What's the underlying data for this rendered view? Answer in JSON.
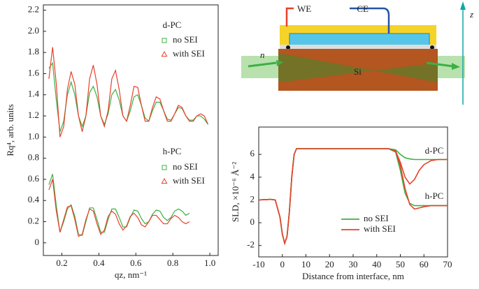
{
  "chart_data": [
    {
      "type": "scatter",
      "xlabel": "qz, nm⁻¹",
      "ylabel": "Rq⁴, arb. units",
      "xlim": [
        0.1,
        1.045
      ],
      "ylim": [
        -0.12,
        2.25
      ],
      "xticks": [
        0.2,
        0.4,
        0.6,
        0.8,
        {
          "value": 1,
          "label": "1.0"
        }
      ],
      "yticks": [
        {
          "value": 0,
          "label": "0"
        },
        0.2,
        0.4,
        0.6,
        0.8,
        {
          "value": 1,
          "label": "1.0"
        },
        1.2,
        1.4,
        1.6,
        1.8,
        {
          "value": 2,
          "label": "2.0"
        },
        2.2
      ],
      "panels": [
        {
          "title": "d-PC",
          "x": [
            0.13,
            0.15,
            0.17,
            0.19,
            0.21,
            0.23,
            0.25,
            0.27,
            0.29,
            0.31,
            0.33,
            0.35,
            0.37,
            0.39,
            0.41,
            0.43,
            0.45,
            0.47,
            0.49,
            0.51,
            0.53,
            0.55,
            0.57,
            0.59,
            0.61,
            0.63,
            0.65,
            0.67,
            0.69,
            0.71,
            0.73,
            0.75,
            0.77,
            0.79,
            0.81,
            0.83,
            0.85,
            0.87,
            0.89,
            0.91,
            0.93,
            0.95,
            0.97,
            0.99
          ],
          "series": [
            {
              "name": "no SEI",
              "color": "#3cb043",
              "marker": "square",
              "values": [
                1.6,
                1.75,
                1.3,
                1.1,
                1.12,
                1.45,
                1.55,
                1.35,
                1.18,
                1.12,
                1.25,
                1.45,
                1.45,
                1.35,
                1.15,
                1.15,
                1.25,
                1.42,
                1.42,
                1.3,
                1.18,
                1.17,
                1.28,
                1.4,
                1.38,
                1.27,
                1.15,
                1.17,
                1.27,
                1.35,
                1.3,
                1.22,
                1.15,
                1.18,
                1.25,
                1.3,
                1.25,
                1.18,
                1.15,
                1.17,
                1.22,
                1.18,
                1.15,
                1.15
              ]
            },
            {
              "name": "with SEI",
              "color": "#e8412c",
              "marker": "triangle",
              "values": [
                1.6,
                1.95,
                1.45,
                0.98,
                1.15,
                1.4,
                1.66,
                1.55,
                1.15,
                1.0,
                1.25,
                1.6,
                1.72,
                1.45,
                1.18,
                1.08,
                1.3,
                1.5,
                1.65,
                1.4,
                1.22,
                1.12,
                1.35,
                1.45,
                1.5,
                1.28,
                1.12,
                1.18,
                1.3,
                1.4,
                1.33,
                1.22,
                1.13,
                1.18,
                1.25,
                1.33,
                1.25,
                1.18,
                1.12,
                1.17,
                1.22,
                1.25,
                1.18,
                1.08
              ]
            }
          ],
          "fits": [
            {
              "color": "#3cb043",
              "values": [
                1.65,
                1.7,
                1.35,
                1.05,
                1.15,
                1.4,
                1.52,
                1.4,
                1.2,
                1.1,
                1.2,
                1.42,
                1.48,
                1.38,
                1.2,
                1.12,
                1.22,
                1.4,
                1.45,
                1.35,
                1.2,
                1.15,
                1.25,
                1.38,
                1.4,
                1.3,
                1.18,
                1.15,
                1.25,
                1.33,
                1.33,
                1.25,
                1.17,
                1.16,
                1.22,
                1.28,
                1.27,
                1.2,
                1.16,
                1.16,
                1.2,
                1.2,
                1.17,
                1.12
              ]
            },
            {
              "color": "#e8412c",
              "values": [
                1.55,
                1.85,
                1.5,
                1.0,
                1.1,
                1.45,
                1.62,
                1.5,
                1.2,
                1.05,
                1.2,
                1.55,
                1.68,
                1.5,
                1.2,
                1.1,
                1.25,
                1.55,
                1.63,
                1.45,
                1.2,
                1.15,
                1.3,
                1.48,
                1.47,
                1.3,
                1.15,
                1.15,
                1.28,
                1.38,
                1.36,
                1.25,
                1.15,
                1.15,
                1.22,
                1.3,
                1.28,
                1.2,
                1.15,
                1.15,
                1.2,
                1.22,
                1.2,
                1.12
              ]
            }
          ]
        },
        {
          "title": "h-PC",
          "x": [
            0.13,
            0.15,
            0.17,
            0.19,
            0.21,
            0.23,
            0.25,
            0.27,
            0.29,
            0.31,
            0.33,
            0.35,
            0.37,
            0.39,
            0.41,
            0.43,
            0.45,
            0.47,
            0.49,
            0.51,
            0.53,
            0.55,
            0.57,
            0.59,
            0.61,
            0.63,
            0.65,
            0.67,
            0.69,
            0.71,
            0.73,
            0.75,
            0.77,
            0.79,
            0.81,
            0.83,
            0.85,
            0.87,
            0.89
          ],
          "series": [
            {
              "name": "no SEI",
              "color": "#3cb043",
              "marker": "square",
              "values": [
                0.6,
                0.75,
                0.4,
                0.12,
                0.18,
                0.3,
                0.38,
                0.22,
                0.1,
                0.05,
                0.22,
                0.35,
                0.3,
                0.2,
                0.08,
                0.12,
                0.25,
                0.33,
                0.3,
                0.22,
                0.13,
                0.17,
                0.26,
                0.33,
                0.28,
                0.2,
                0.16,
                0.22,
                0.29,
                0.33,
                0.28,
                0.22,
                0.2,
                0.26,
                0.32,
                0.34,
                0.28,
                0.28,
                0.33
              ]
            },
            {
              "name": "with SEI",
              "color": "#e8412c",
              "marker": "triangle",
              "values": [
                0.45,
                0.62,
                0.28,
                0.08,
                0.25,
                0.32,
                0.36,
                0.2,
                0.05,
                0.1,
                0.24,
                0.3,
                0.32,
                0.16,
                0.1,
                0.1,
                0.23,
                0.32,
                0.25,
                0.2,
                0.1,
                0.18,
                0.27,
                0.26,
                0.25,
                0.15,
                0.14,
                0.22,
                0.27,
                0.24,
                0.23,
                0.17,
                0.2,
                0.22,
                0.27,
                0.22,
                0.2,
                0.17,
                0.22
              ]
            }
          ],
          "fits": [
            {
              "color": "#3cb043",
              "values": [
                0.55,
                0.65,
                0.35,
                0.1,
                0.2,
                0.32,
                0.36,
                0.25,
                0.08,
                0.07,
                0.2,
                0.33,
                0.33,
                0.22,
                0.1,
                0.1,
                0.22,
                0.32,
                0.32,
                0.24,
                0.15,
                0.15,
                0.24,
                0.31,
                0.3,
                0.23,
                0.18,
                0.2,
                0.27,
                0.31,
                0.3,
                0.24,
                0.21,
                0.24,
                0.3,
                0.32,
                0.3,
                0.26,
                0.28
              ]
            },
            {
              "color": "#e8412c",
              "values": [
                0.5,
                0.6,
                0.3,
                0.1,
                0.22,
                0.34,
                0.35,
                0.22,
                0.06,
                0.08,
                0.22,
                0.32,
                0.3,
                0.18,
                0.08,
                0.12,
                0.25,
                0.3,
                0.27,
                0.18,
                0.12,
                0.16,
                0.25,
                0.28,
                0.24,
                0.17,
                0.15,
                0.2,
                0.26,
                0.26,
                0.22,
                0.18,
                0.18,
                0.23,
                0.26,
                0.24,
                0.2,
                0.18,
                0.2
              ]
            }
          ]
        }
      ]
    },
    {
      "type": "line",
      "xlabel": "Distance from interface, nm",
      "ylabel": "SLD, ×10⁻⁶ Å⁻²",
      "xlim": [
        -10,
        70
      ],
      "ylim": [
        -3,
        8.4
      ],
      "xticks": [
        -10,
        0,
        10,
        20,
        30,
        40,
        50,
        60,
        70
      ],
      "yticks": [
        -2,
        0,
        2,
        4,
        6
      ],
      "x": [
        -10,
        -5,
        -3,
        -1,
        0,
        1,
        2,
        3,
        4,
        5,
        6,
        10,
        20,
        30,
        40,
        45,
        48,
        50,
        52,
        54,
        56,
        58,
        60,
        63,
        66,
        70
      ],
      "series": [
        {
          "color": "#3cb043",
          "values": [
            2,
            2.05,
            2,
            0.5,
            -1,
            -1.8,
            -1.2,
            1,
            4,
            6,
            6.5,
            6.5,
            6.5,
            6.5,
            6.5,
            6.5,
            6.4,
            6.0,
            5.7,
            5.6,
            5.55,
            5.55,
            5.55,
            5.55,
            5.55,
            5.55
          ]
        },
        {
          "color": "#e8412c",
          "values": [
            2,
            2.05,
            2,
            0.5,
            -1,
            -1.8,
            -1.2,
            1,
            4,
            6,
            6.5,
            6.5,
            6.5,
            6.5,
            6.5,
            6.5,
            6.3,
            5.3,
            4.0,
            3.4,
            3.8,
            4.6,
            5.1,
            5.45,
            5.55,
            5.55
          ]
        },
        {
          "color": "#3cb043",
          "values": [
            2,
            2.05,
            2,
            0.5,
            -1,
            -1.8,
            -1.2,
            1,
            4,
            6,
            6.5,
            6.5,
            6.5,
            6.5,
            6.5,
            6.5,
            6.2,
            4.6,
            2.6,
            1.7,
            1.5,
            1.5,
            1.5,
            1.5,
            1.5,
            1.5
          ]
        },
        {
          "color": "#e8412c",
          "values": [
            2,
            2.05,
            2,
            0.5,
            -1,
            -1.8,
            -1.2,
            1,
            4,
            6,
            6.5,
            6.5,
            6.5,
            6.5,
            6.5,
            6.5,
            6.3,
            5.0,
            3.0,
            1.6,
            1.2,
            1.3,
            1.4,
            1.5,
            1.5,
            1.5
          ]
        }
      ],
      "legend": [
        {
          "name": "no SEI",
          "color": "#3cb043"
        },
        {
          "name": "with SEI",
          "color": "#e8412c"
        }
      ],
      "annotations": [
        "d-PC",
        "h-PC"
      ]
    }
  ],
  "diagram": {
    "we": "WE",
    "ce": "CE",
    "beam": "n",
    "substrate": "Si",
    "axis": "z"
  }
}
